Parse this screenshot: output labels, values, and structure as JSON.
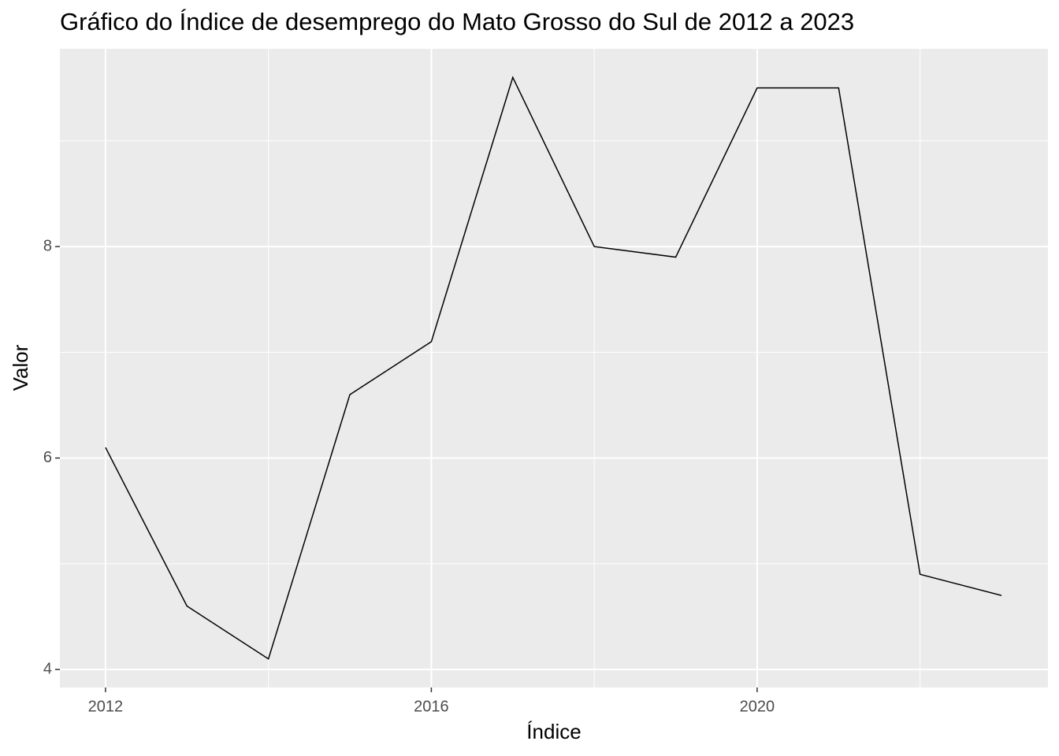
{
  "chart_data": {
    "type": "line",
    "title": "Gráfico do Índice de desemprego do Mato Grosso do Sul de 2012 a 2023",
    "x_label": "Índice",
    "y_label": "Valor",
    "x": [
      2012,
      2013,
      2014,
      2015,
      2016,
      2017,
      2018,
      2019,
      2020,
      2021,
      2022,
      2023
    ],
    "values": [
      6.1,
      4.6,
      4.1,
      6.6,
      7.1,
      9.6,
      8.0,
      7.9,
      9.5,
      9.5,
      4.9,
      4.7
    ],
    "color": "#000000",
    "xlim": [
      2011.44,
      2023.57
    ],
    "ylim": [
      3.83,
      9.87
    ],
    "xticks": [
      2012,
      2016,
      2020
    ],
    "yticks": [
      4,
      6,
      8
    ],
    "minor_xticks": [
      2014,
      2018,
      2022
    ],
    "minor_yticks": [
      5,
      7,
      9
    ],
    "grid": true
  }
}
